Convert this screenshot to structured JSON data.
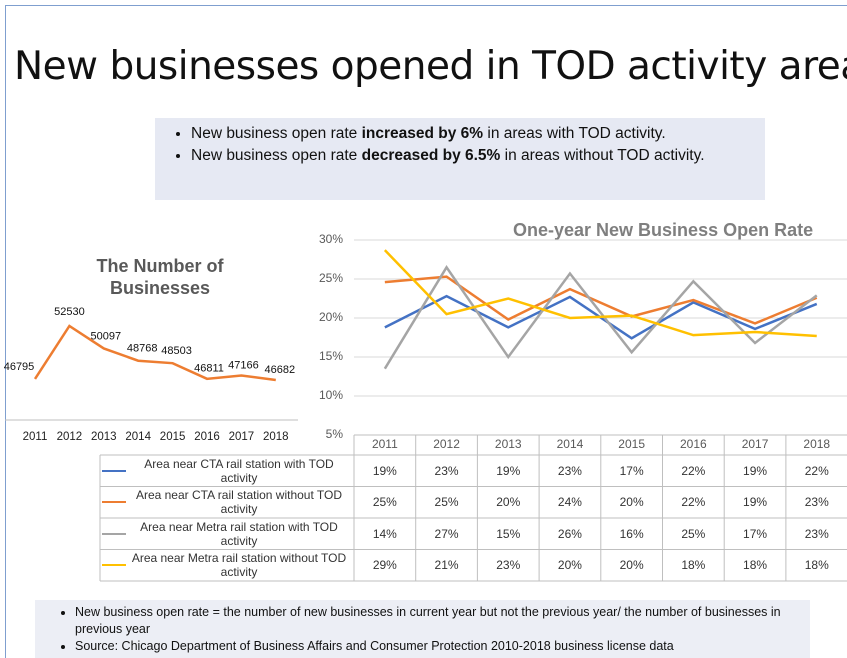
{
  "title": "New businesses opened in TOD activity areas",
  "bullets": [
    {
      "before": "New business open rate ",
      "bold": "increased by 6%",
      "after": " in areas with TOD activity."
    },
    {
      "before": "New business open rate ",
      "bold": "decreased by 6.5%",
      "after": " in areas without TOD activity."
    }
  ],
  "chart_data": [
    {
      "type": "line",
      "title": "The Number of Businesses",
      "color": "#ed7d31",
      "categories": [
        "2011",
        "2012",
        "2013",
        "2014",
        "2015",
        "2016",
        "2017",
        "2018"
      ],
      "values": [
        46795,
        52530,
        50097,
        48768,
        48503,
        46811,
        47166,
        46682
      ]
    },
    {
      "type": "line",
      "title": "One-year New Business Open Rate",
      "categories": [
        "2011",
        "2012",
        "2013",
        "2014",
        "2015",
        "2016",
        "2017",
        "2018"
      ],
      "ylim": [
        5,
        30
      ],
      "yticks": [
        {
          "value": 5,
          "label": "5%"
        },
        {
          "value": 10,
          "label": "10%"
        },
        {
          "value": 15,
          "label": "15%"
        },
        {
          "value": 20,
          "label": "20%"
        },
        {
          "value": 25,
          "label": "25%"
        },
        {
          "value": 30,
          "label": "30%"
        }
      ],
      "grid": true,
      "series": [
        {
          "name": "Area near CTA rail station with TOD activity",
          "color": "#4472c4",
          "values": [
            18.8,
            22.8,
            18.8,
            22.7,
            17.4,
            22.0,
            18.6,
            21.8
          ],
          "value_labels": [
            "19%",
            "23%",
            "19%",
            "23%",
            "17%",
            "22%",
            "19%",
            "22%"
          ]
        },
        {
          "name": "Area near CTA rail station without TOD activity",
          "color": "#ed7d31",
          "values": [
            24.6,
            25.3,
            19.8,
            23.7,
            20.2,
            22.3,
            19.3,
            22.6
          ],
          "value_labels": [
            "25%",
            "25%",
            "20%",
            "24%",
            "20%",
            "22%",
            "19%",
            "23%"
          ]
        },
        {
          "name": "Area near Metra rail station with TOD activity",
          "color": "#a5a5a5",
          "values": [
            13.5,
            26.5,
            15.0,
            25.7,
            15.6,
            24.7,
            16.8,
            22.9
          ],
          "value_labels": [
            "14%",
            "27%",
            "15%",
            "26%",
            "16%",
            "25%",
            "17%",
            "23%"
          ]
        },
        {
          "name": "Area near Metra rail station without TOD activity",
          "color": "#ffc000",
          "values": [
            28.7,
            20.5,
            22.5,
            20.0,
            20.3,
            17.8,
            18.2,
            17.7
          ],
          "value_labels": [
            "29%",
            "21%",
            "23%",
            "20%",
            "20%",
            "18%",
            "18%",
            "18%"
          ]
        }
      ]
    }
  ],
  "footnotes": [
    "New business open rate = the number of new businesses in current year but not the previous year/ the number of businesses in previous year",
    "Source: Chicago Department of Business Affairs and Consumer Protection 2010-2018 business license data"
  ]
}
